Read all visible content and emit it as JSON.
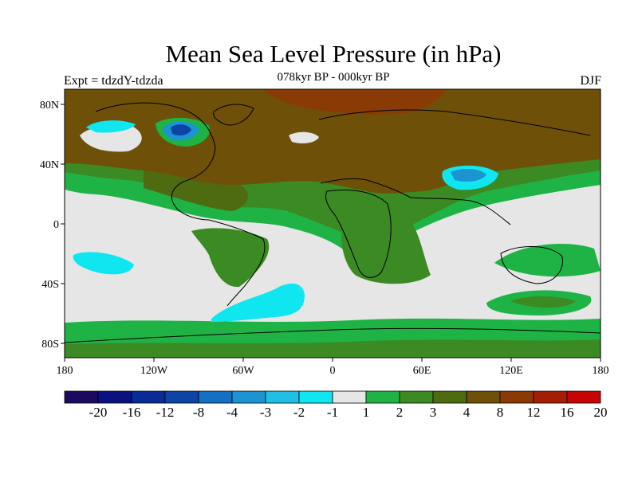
{
  "title": "Mean Sea Level Pressure (in hPa)",
  "subtitle": "078kyr BP - 000kyr BP",
  "experiment": "Expt = tdzdY-tdzda",
  "season": "DJF",
  "map": {
    "lat_labels": [
      "80N",
      "40N",
      "0",
      "40S",
      "80S"
    ],
    "lon_labels": [
      "180",
      "120W",
      "60W",
      "0",
      "60E",
      "120E",
      "180"
    ]
  },
  "colorbar": {
    "labels": [
      "-20",
      "-16",
      "-12",
      "-8",
      "-4",
      "-3",
      "-2",
      "-1",
      "1",
      "2",
      "3",
      "4",
      "8",
      "12",
      "16",
      "20"
    ],
    "colors": [
      "#1b0a5e",
      "#0b1280",
      "#0a2a95",
      "#0d44a6",
      "#1470c2",
      "#1c94d2",
      "#1fbfe6",
      "#10e6ef",
      "#e6e6e6",
      "#1fb346",
      "#3b8a24",
      "#4f6b12",
      "#6e5008",
      "#8a3a05",
      "#a41e05",
      "#c60404"
    ]
  }
}
